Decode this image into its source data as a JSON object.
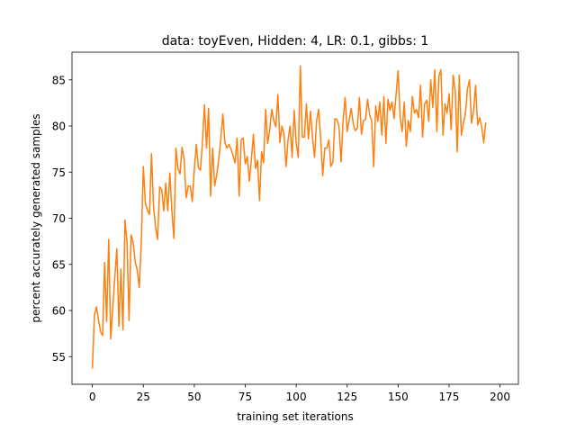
{
  "chart_data": {
    "type": "line",
    "title": "data: toyEven, Hidden: 4, LR: 0.1, gibbs: 1",
    "xlabel": "training set iterations",
    "ylabel": "percent accurately generated samples",
    "xlim": [
      -10,
      209
    ],
    "ylim": [
      52,
      88
    ],
    "xticks": [
      0,
      25,
      50,
      75,
      100,
      125,
      150,
      175,
      200
    ],
    "yticks": [
      55,
      60,
      65,
      70,
      75,
      80,
      85
    ],
    "grid": false,
    "line_color": "#ff7f0e",
    "series": [
      {
        "name": "",
        "values": [
          53.7,
          59.5,
          60.4,
          59.0,
          57.7,
          57.3,
          65.2,
          58.8,
          67.7,
          56.9,
          60.3,
          63.6,
          66.7,
          58.3,
          64.5,
          57.9,
          69.8,
          67.4,
          58.9,
          68.2,
          67.4,
          65.3,
          64.4,
          62.5,
          67.4,
          75.6,
          71.6,
          70.9,
          70.4,
          77.0,
          71.3,
          69.0,
          67.7,
          73.4,
          73.1,
          70.8,
          73.8,
          70.8,
          74.9,
          70.8,
          67.8,
          77.6,
          75.4,
          74.8,
          77.7,
          76.4,
          72.2,
          73.5,
          73.5,
          71.8,
          75.3,
          78.0,
          75.5,
          75.2,
          78.2,
          82.3,
          77.6,
          81.9,
          72.4,
          77.6,
          73.5,
          74.7,
          76.4,
          78.6,
          81.3,
          78.2,
          77.6,
          78.0,
          77.5,
          76.8,
          76.0,
          78.7,
          72.4,
          78.5,
          78.7,
          75.9,
          76.7,
          74.0,
          76.4,
          79.1,
          75.4,
          76.3,
          71.9,
          77.2,
          76.0,
          81.8,
          78.1,
          79.6,
          81.8,
          80.6,
          79.9,
          83.4,
          78.2,
          80.0,
          79.1,
          75.6,
          78.5,
          80.0,
          76.6,
          81.7,
          78.1,
          76.6,
          86.5,
          78.8,
          78.8,
          82.4,
          78.6,
          81.6,
          78.7,
          76.6,
          80.6,
          81.8,
          78.6,
          74.6,
          77.6,
          77.6,
          78.5,
          75.6,
          76.1,
          80.8,
          80.7,
          79.9,
          76.1,
          80.6,
          83.1,
          79.4,
          80.7,
          81.9,
          80.2,
          79.5,
          79.8,
          83.1,
          79.1,
          80.6,
          80.7,
          82.9,
          81.2,
          80.6,
          75.6,
          82.2,
          80.5,
          82.6,
          79.0,
          83.2,
          78.1,
          82.9,
          81.7,
          82.6,
          80.8,
          83.4,
          86.0,
          80.9,
          79.4,
          82.6,
          77.8,
          80.6,
          79.4,
          83.2,
          81.4,
          81.8,
          80.9,
          84.4,
          78.8,
          82.4,
          82.8,
          80.5,
          85.0,
          82.0,
          86.1,
          79.4,
          85.4,
          86.1,
          79.0,
          82.4,
          81.4,
          83.5,
          79.6,
          85.5,
          83.8,
          77.2,
          85.5,
          79.0,
          80.3,
          81.3,
          84.0,
          85.0,
          80.3,
          81.6,
          84.4,
          80.1,
          80.9,
          79.9,
          78.2,
          80.4
        ]
      }
    ]
  }
}
